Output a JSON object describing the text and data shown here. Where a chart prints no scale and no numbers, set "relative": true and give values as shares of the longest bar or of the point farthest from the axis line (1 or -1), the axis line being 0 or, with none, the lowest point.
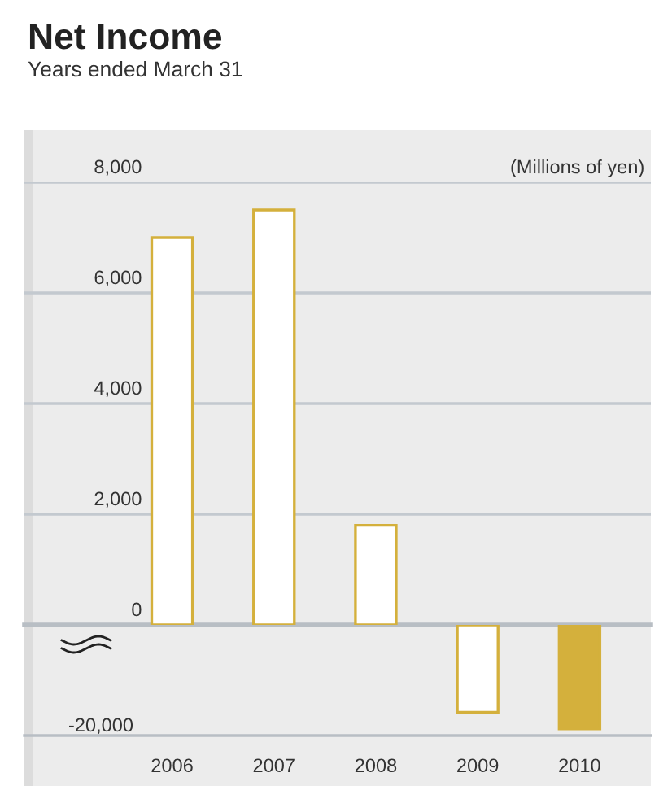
{
  "chart_data": [
    {
      "type": "bar",
      "title": "Net Income",
      "subtitle": "Years ended March 31",
      "ylabel": "(Millions of yen)",
      "categories": [
        "2006",
        "2007",
        "2008",
        "2009",
        "2010"
      ],
      "series": [
        {
          "color": "#d4b03c",
          "colors": [
            "#ffffff",
            "#ffffff",
            "#ffffff",
            "#ffffff",
            "#d4b03c"
          ],
          "values": [
            7000,
            7500,
            1800,
            null,
            null
          ]
        }
      ],
      "ylim": [
        0,
        8000
      ],
      "yticks": [
        0,
        {
          "value": 2000,
          "label": "2,000"
        },
        {
          "value": 4000,
          "label": "4,000"
        },
        {
          "value": 6000,
          "label": "6,000"
        },
        {
          "value": 8000,
          "label": "8,000"
        }
      ],
      "grid": "y",
      "tick_labels": "y"
    },
    {
      "type": "bar",
      "categories": [
        "2006",
        "2007",
        "2008",
        "2009",
        "2010"
      ],
      "series": [
        {
          "color": "#d4b03c",
          "colors": [
            "#ffffff",
            "#ffffff",
            "#ffffff",
            "#ffffff",
            "#d4b03c"
          ],
          "values": [
            null,
            null,
            null,
            -0.84,
            -1
          ]
        }
      ],
      "relative": true,
      "annotations": [
        "-20,000"
      ]
    }
  ]
}
